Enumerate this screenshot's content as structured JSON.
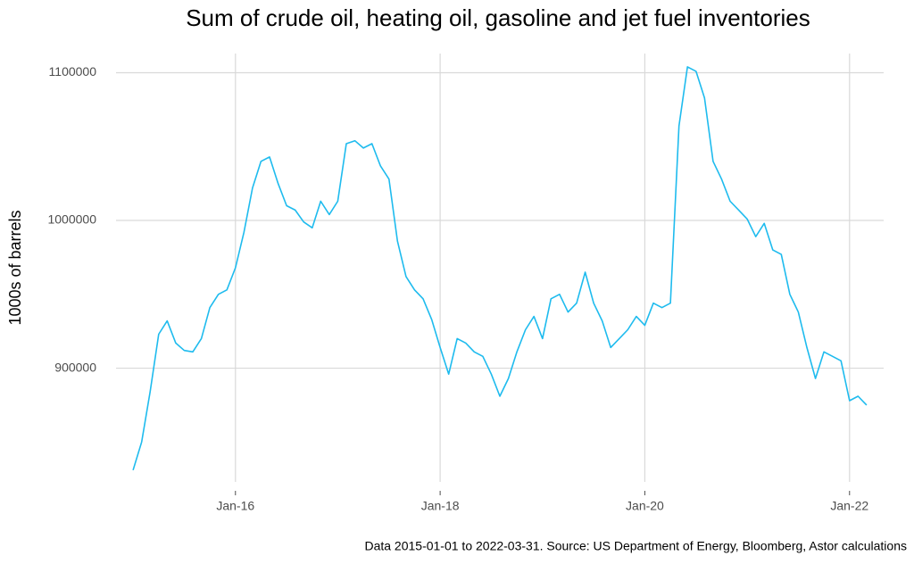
{
  "chart_data": {
    "type": "line",
    "title": "Sum of crude oil, heating oil, gasoline and jet fuel inventories",
    "y_label": "1000s of barrels",
    "caption": "Data 2015-01-01 to 2022-03-31.  Source: US Department of Energy, Bloomberg, Astor calculations",
    "x": [
      "2015-01",
      "2015-02",
      "2015-03",
      "2015-04",
      "2015-05",
      "2015-06",
      "2015-07",
      "2015-08",
      "2015-09",
      "2015-10",
      "2015-11",
      "2015-12",
      "2016-01",
      "2016-02",
      "2016-03",
      "2016-04",
      "2016-05",
      "2016-06",
      "2016-07",
      "2016-08",
      "2016-09",
      "2016-10",
      "2016-11",
      "2016-12",
      "2017-01",
      "2017-02",
      "2017-03",
      "2017-04",
      "2017-05",
      "2017-06",
      "2017-07",
      "2017-08",
      "2017-09",
      "2017-10",
      "2017-11",
      "2017-12",
      "2018-01",
      "2018-02",
      "2018-03",
      "2018-04",
      "2018-05",
      "2018-06",
      "2018-07",
      "2018-08",
      "2018-09",
      "2018-10",
      "2018-11",
      "2018-12",
      "2019-01",
      "2019-02",
      "2019-03",
      "2019-04",
      "2019-05",
      "2019-06",
      "2019-07",
      "2019-08",
      "2019-09",
      "2019-10",
      "2019-11",
      "2019-12",
      "2020-01",
      "2020-02",
      "2020-03",
      "2020-04",
      "2020-05",
      "2020-06",
      "2020-07",
      "2020-08",
      "2020-09",
      "2020-10",
      "2020-11",
      "2020-12",
      "2021-01",
      "2021-02",
      "2021-03",
      "2021-04",
      "2021-05",
      "2021-06",
      "2021-07",
      "2021-08",
      "2021-09",
      "2021-10",
      "2021-11",
      "2021-12",
      "2022-01",
      "2022-02",
      "2022-03"
    ],
    "series": [
      {
        "color": "#1ebbee",
        "values": [
          831000,
          850000,
          884000,
          923000,
          932000,
          917000,
          912000,
          911000,
          920000,
          941000,
          950000,
          953000,
          968000,
          992000,
          1022000,
          1040000,
          1043000,
          1025000,
          1010000,
          1007000,
          999000,
          995000,
          1013000,
          1004000,
          1013000,
          1052000,
          1054000,
          1049000,
          1052000,
          1037000,
          1028000,
          986000,
          962000,
          953000,
          947000,
          933000,
          914000,
          896000,
          920000,
          917000,
          911000,
          908000,
          896000,
          881000,
          893000,
          911000,
          926000,
          935000,
          920000,
          947000,
          950000,
          938000,
          944000,
          965000,
          944000,
          932000,
          914000,
          920000,
          926000,
          935000,
          929000,
          944000,
          941000,
          944000,
          1064000,
          1104000,
          1101000,
          1083000,
          1040000,
          1028000,
          1013000,
          1007000,
          1001000,
          989000,
          998000,
          980000,
          977000,
          950000,
          938000,
          914000,
          893000,
          911000,
          908000,
          905000,
          878000,
          881000,
          875000
        ]
      }
    ],
    "xlim": [
      "2014-11",
      "2022-05"
    ],
    "xticks": [
      {
        "value": "2016-01",
        "label": "Jan-16"
      },
      {
        "value": "2018-01",
        "label": "Jan-18"
      },
      {
        "value": "2020-01",
        "label": "Jan-20"
      },
      {
        "value": "2022-01",
        "label": "Jan-22"
      }
    ],
    "ylim": [
      823000,
      1113000
    ],
    "yticks": [
      900000,
      1000000,
      1100000
    ],
    "grid": true
  }
}
